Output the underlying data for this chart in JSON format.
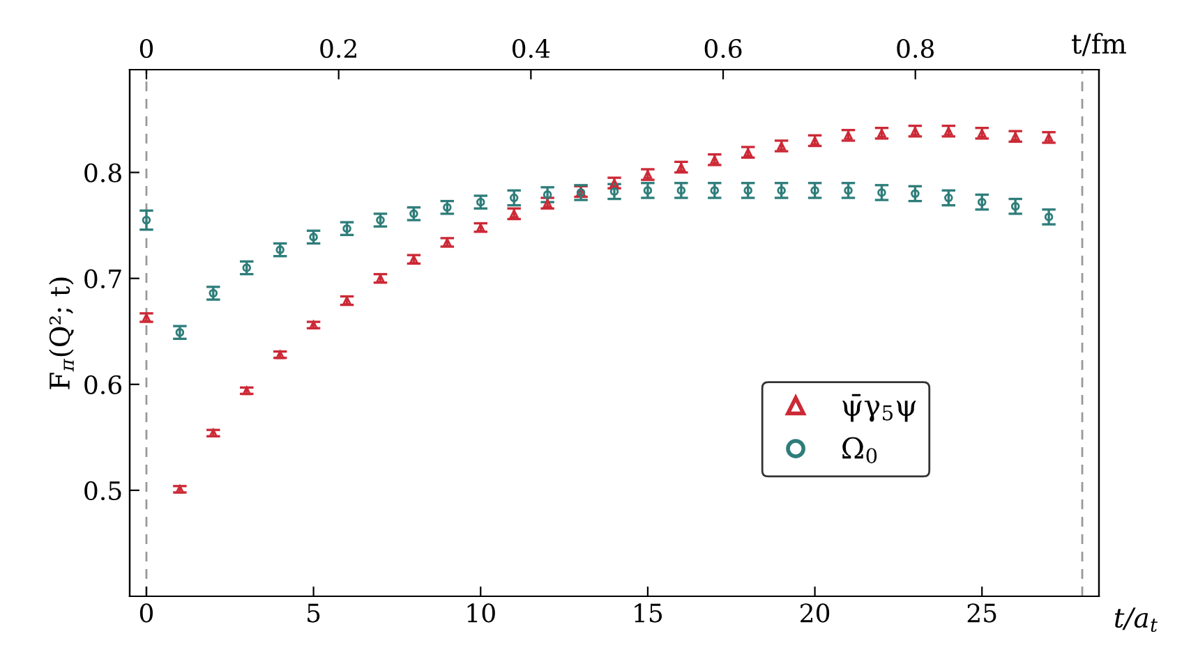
{
  "chart_data": {
    "type": "scatter",
    "xlabel": "t/a$_{t}$",
    "ylabel": "F$_{π}$(Q²; t)",
    "x2label": "t/fm",
    "x": [
      0,
      1,
      2,
      3,
      4,
      5,
      6,
      7,
      8,
      9,
      10,
      11,
      12,
      13,
      14,
      15,
      16,
      17,
      18,
      19,
      20,
      21,
      22,
      23,
      24,
      25,
      26,
      27
    ],
    "series": [
      {
        "name": "ψ̄γ$_{5}$ψ",
        "color": "#cc2936",
        "marker": "triangle",
        "values": [
          0.663,
          0.501,
          0.554,
          0.594,
          0.628,
          0.656,
          0.679,
          0.7,
          0.718,
          0.734,
          0.748,
          0.761,
          0.771,
          0.782,
          0.79,
          0.798,
          0.805,
          0.812,
          0.819,
          0.825,
          0.83,
          0.835,
          0.837,
          0.839,
          0.839,
          0.837,
          0.834,
          0.833
        ],
        "errors": [
          0.004,
          0.003,
          0.003,
          0.003,
          0.003,
          0.003,
          0.004,
          0.004,
          0.004,
          0.004,
          0.004,
          0.005,
          0.005,
          0.005,
          0.005,
          0.005,
          0.005,
          0.005,
          0.005,
          0.005,
          0.005,
          0.005,
          0.005,
          0.005,
          0.005,
          0.005,
          0.005,
          0.005
        ]
      },
      {
        "name": "Ω$_{0}$",
        "color": "#2e7d7a",
        "marker": "circle",
        "values": [
          0.755,
          0.649,
          0.686,
          0.71,
          0.727,
          0.739,
          0.747,
          0.755,
          0.761,
          0.767,
          0.772,
          0.776,
          0.779,
          0.781,
          0.782,
          0.783,
          0.783,
          0.783,
          0.783,
          0.783,
          0.783,
          0.783,
          0.781,
          0.78,
          0.776,
          0.772,
          0.768,
          0.758
        ],
        "errors": [
          0.009,
          0.006,
          0.006,
          0.006,
          0.006,
          0.006,
          0.006,
          0.006,
          0.006,
          0.006,
          0.006,
          0.007,
          0.007,
          0.007,
          0.007,
          0.007,
          0.007,
          0.007,
          0.007,
          0.007,
          0.007,
          0.007,
          0.007,
          0.007,
          0.007,
          0.007,
          0.007,
          0.007
        ]
      }
    ],
    "xlim": [
      -0.5,
      28.5
    ],
    "ylim": [
      0.4,
      0.897
    ],
    "xticks": [
      0,
      5,
      10,
      15,
      20,
      25
    ],
    "yticks": [
      0.5,
      0.6,
      0.7,
      0.8
    ],
    "x2lim": [
      -0.0174,
      0.991
    ],
    "x2ticks": [
      0,
      0.2,
      0.4,
      0.6,
      0.8
    ],
    "ref_lines": [
      {
        "axis": "x",
        "value": 0,
        "color": "#999999",
        "line_style": "dashed"
      },
      {
        "axis": "x",
        "value": 28,
        "color": "#999999",
        "line_style": "dashed"
      }
    ],
    "legend": "lower right",
    "grid": false
  }
}
